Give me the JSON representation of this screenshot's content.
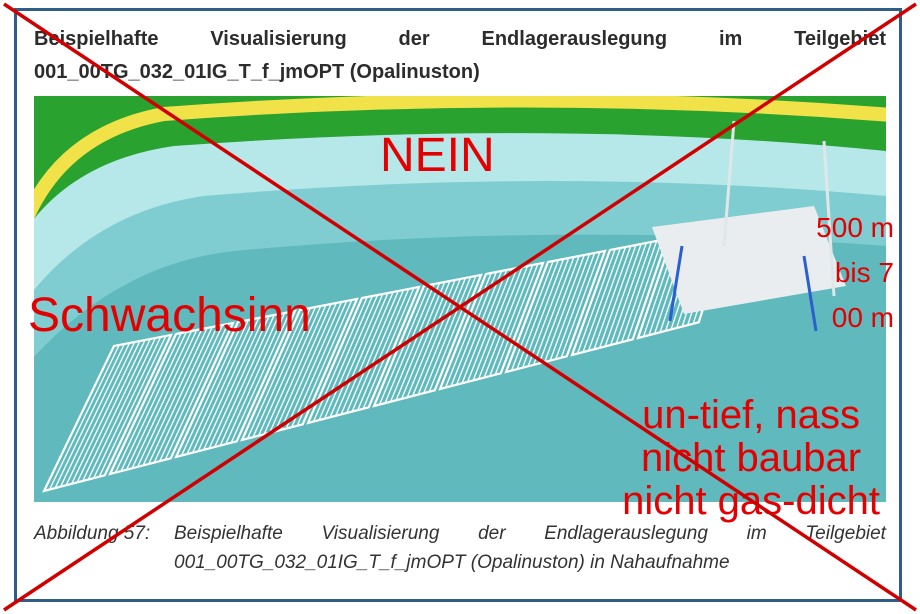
{
  "frame": {
    "border_color": "#2f5d87"
  },
  "palette": {
    "overlay_red": "#e40000",
    "cross_red": "#d10000",
    "text_dark": "#2c2c2c",
    "caption_gray": "#333333"
  },
  "title": {
    "line1_words": [
      "Beispielhafte",
      "Visualisierung",
      "der",
      "Endlagerauslegung",
      "im",
      "Teilgebiet"
    ],
    "line2": "001_00TG_032_01IG_T_f_jmOPT (Opalinuston)",
    "fontsize": 20,
    "weight": "bold"
  },
  "render": {
    "bg_green": "#2aa22f",
    "edge_yellow": "#f2e24a",
    "basin_outer": "#b6e8ea",
    "basin_inner": "#7fcdd1",
    "basin_deep": "#5fb9bd",
    "grid_white": "#ffffff",
    "platform_fill": "#e9edef",
    "post_stroke": "#dfe7ea",
    "post_blue": "#2a5fd0"
  },
  "overlays": {
    "nein": {
      "text": "NEIN",
      "fontsize": 48
    },
    "schwachsinn": {
      "text": "Schwachsinn",
      "fontsize": 48
    },
    "critique_line1": "un-tief, nass",
    "critique_line2": "nicht baubar",
    "critique_line3": "nicht gas-dicht",
    "critique_fontsize": 40,
    "depth_line1": "500 m",
    "depth_line2": "bis 7",
    "depth_line3": "00 m",
    "depth_fontsize": 28
  },
  "caption": {
    "label": "Abbildung 57:",
    "body1_words": [
      "Beispielhafte",
      "Visualisierung",
      "der",
      "Endlagerauslegung",
      "im",
      "Teilgebiet"
    ],
    "body2": "001_00TG_032_01IG_T_f_jmOPT (Opalinuston) in Nahaufnahme",
    "fontsize": 19
  }
}
